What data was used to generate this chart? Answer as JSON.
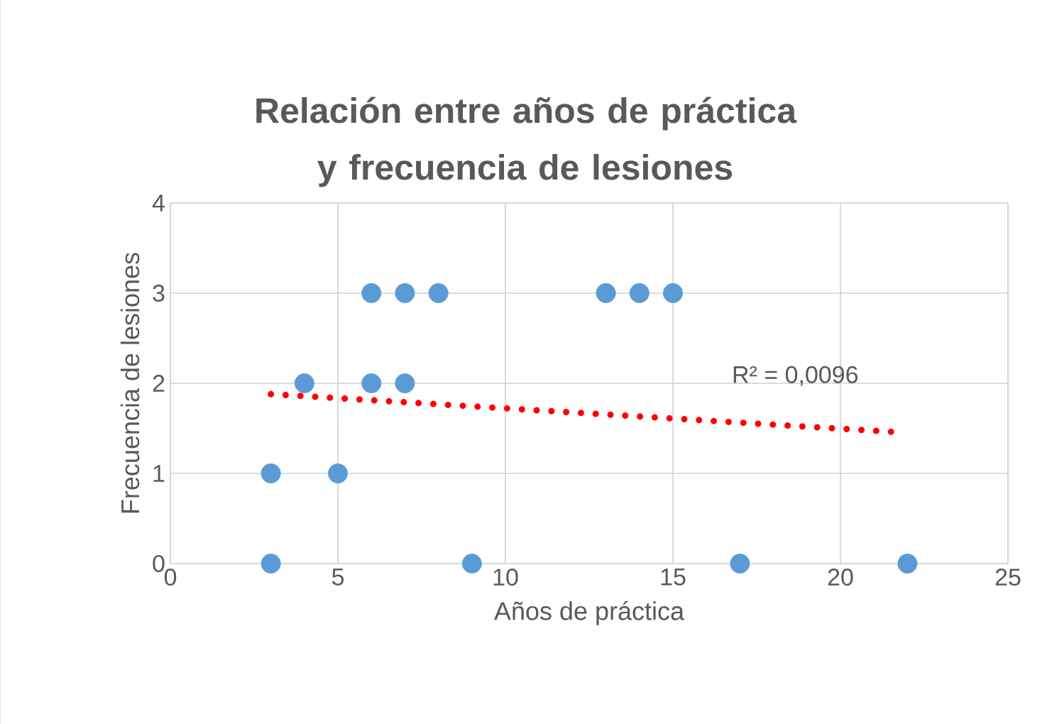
{
  "chart_data": {
    "type": "scatter",
    "title": "Relación entre años de práctica  y frecuencia de lesiones",
    "xlabel": "Años de práctica",
    "ylabel": "Frecuencia de lesiones",
    "series": [
      {
        "color": "#5b9bd5",
        "marker": "circle",
        "x": [
          3,
          3,
          4,
          5,
          6,
          6,
          7,
          7,
          8,
          9,
          13,
          14,
          15,
          17,
          22
        ],
        "values": [
          0,
          1,
          2,
          1,
          2,
          3,
          2,
          3,
          3,
          0,
          3,
          3,
          3,
          0,
          0
        ]
      },
      {
        "type": "line",
        "color": "#ff0000",
        "line_style": "dotted",
        "marker": "none",
        "x": [
          3,
          21.6
        ],
        "values": [
          1.88,
          1.46
        ]
      }
    ],
    "annotations": [
      "R² = 0,0096"
    ],
    "xlim": [
      0,
      25
    ],
    "ylim": [
      0,
      4
    ],
    "xticks": [
      0,
      5,
      10,
      15,
      20,
      25
    ],
    "yticks": [
      0,
      1,
      2,
      3,
      4
    ],
    "grid": true
  }
}
